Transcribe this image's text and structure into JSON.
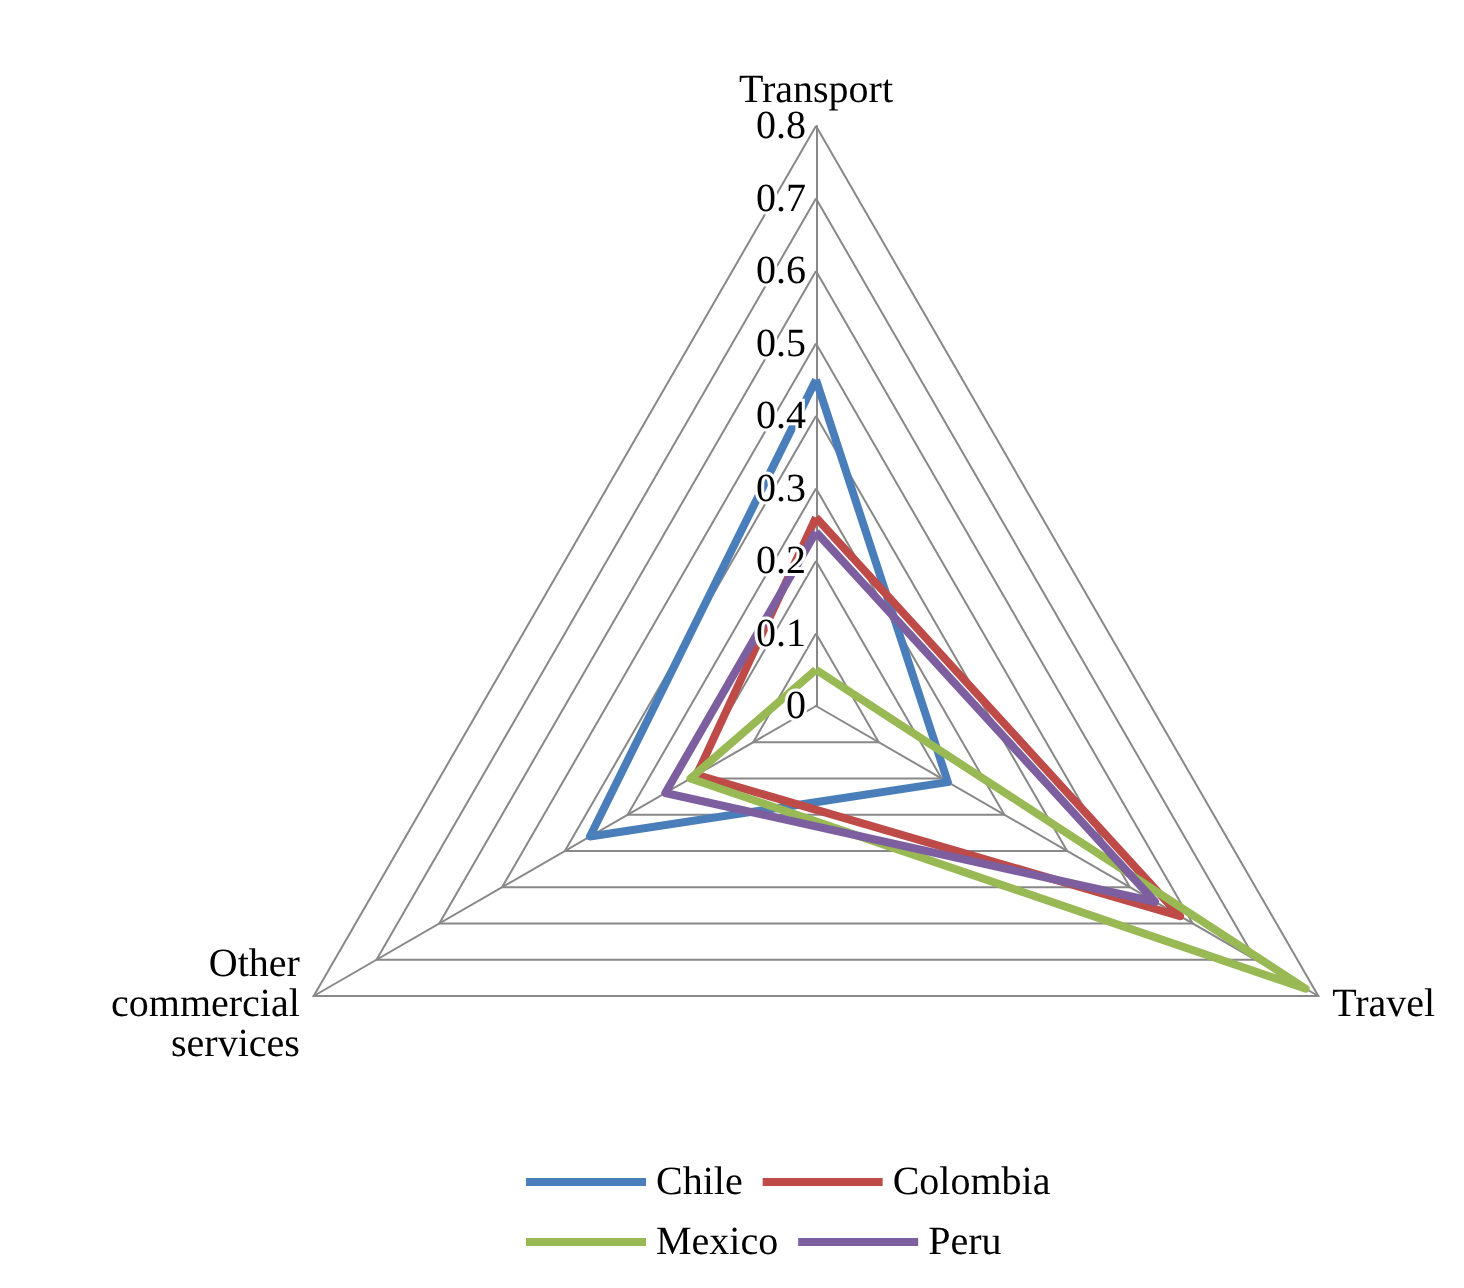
{
  "chart_data": {
    "type": "radar",
    "categories": [
      "Transport",
      "Travel",
      "Other commercial services"
    ],
    "ylim": [
      0,
      0.8
    ],
    "yticks": [
      0,
      0.1,
      0.2,
      0.3,
      0.4,
      0.5,
      0.6,
      0.7,
      0.8
    ],
    "grid": true,
    "legend": "bottom",
    "marker": "none",
    "series": [
      {
        "name": "Chile",
        "color": "#4a7ebb",
        "values": [
          0.45,
          0.21,
          0.36
        ]
      },
      {
        "name": "Colombia",
        "color": "#be4b48",
        "values": [
          0.26,
          0.58,
          0.19
        ]
      },
      {
        "name": "Mexico",
        "color": "#98b954",
        "values": [
          0.05,
          0.78,
          0.2
        ]
      },
      {
        "name": "Peru",
        "color": "#7d5fa0",
        "values": [
          0.24,
          0.54,
          0.24
        ]
      }
    ]
  }
}
